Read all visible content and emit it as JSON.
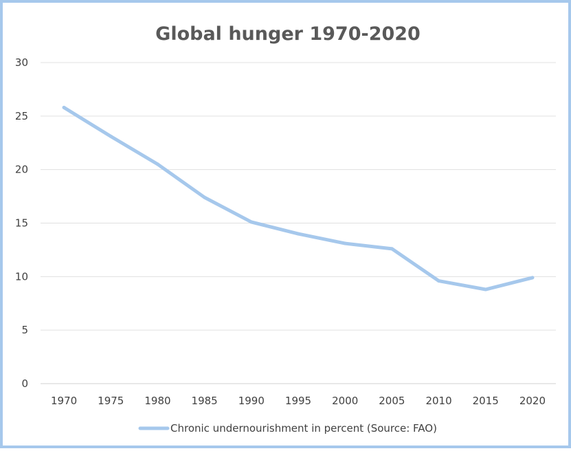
{
  "chart_data": {
    "type": "line",
    "title": "Global hunger 1970-2020",
    "xlabel": "",
    "ylabel": "",
    "x": [
      "1970",
      "1975",
      "1980",
      "1985",
      "1990",
      "1995",
      "2000",
      "2005",
      "2010",
      "2015",
      "2020"
    ],
    "series": [
      {
        "name": "Chronic undernourishment in percent (Source: FAO)",
        "values": [
          25.8,
          23.1,
          20.5,
          17.4,
          15.1,
          14.0,
          13.1,
          12.6,
          9.6,
          8.8,
          9.9
        ],
        "color": "#a6c8ec"
      }
    ],
    "yticks": [
      "0",
      "5",
      "10",
      "15",
      "20",
      "25",
      "30"
    ],
    "ylim": [
      0,
      30
    ],
    "grid": true,
    "legend": "bottom"
  }
}
